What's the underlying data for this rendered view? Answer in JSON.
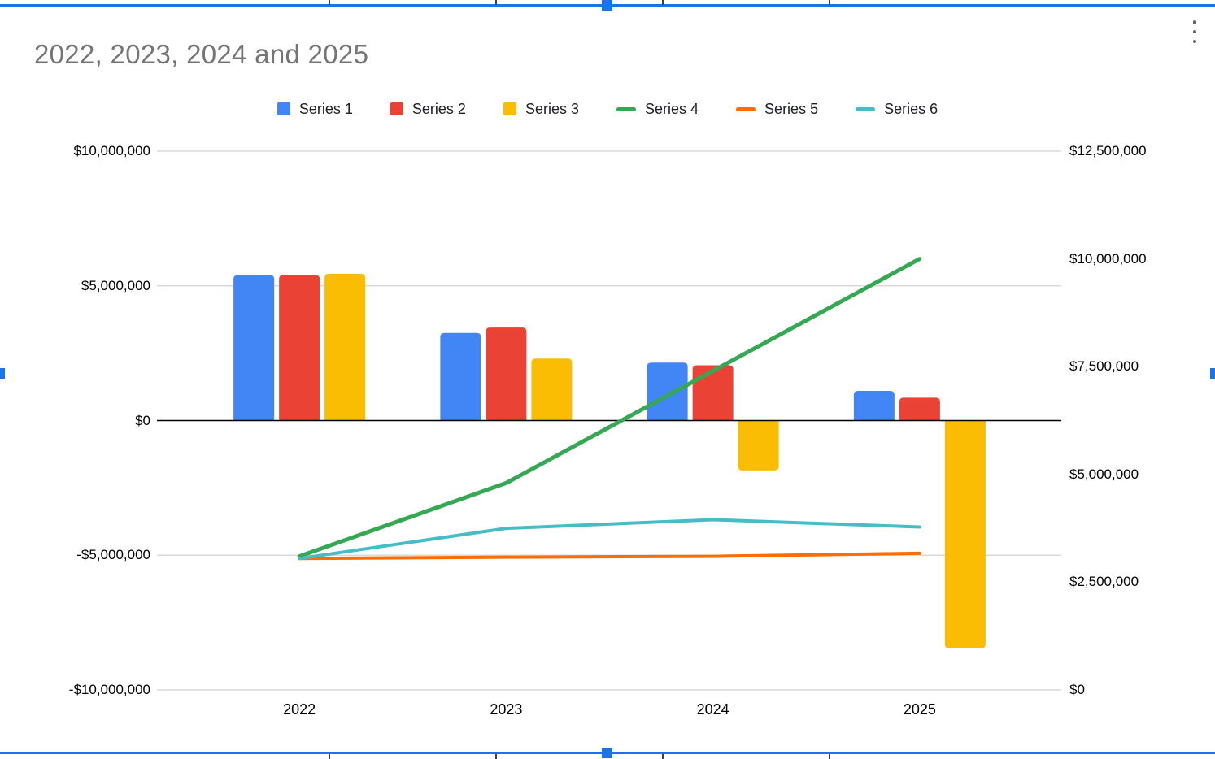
{
  "ui": {
    "selection_color": "#1a73e8",
    "kebab_menu_label": "chart options"
  },
  "chart_data": {
    "type": "combo",
    "title": "2022, 2023, 2024 and 2025",
    "categories": [
      "2022",
      "2023",
      "2024",
      "2025"
    ],
    "bar_series": [
      {
        "name": "Series 1",
        "color": "#4285F4",
        "axis": "left",
        "values": [
          5400000,
          3250000,
          2150000,
          1100000
        ]
      },
      {
        "name": "Series 2",
        "color": "#EA4335",
        "axis": "left",
        "values": [
          5400000,
          3450000,
          2050000,
          850000
        ]
      },
      {
        "name": "Series 3",
        "color": "#FBBC04",
        "axis": "left",
        "values": [
          5450000,
          2300000,
          -1850000,
          -8450000
        ]
      }
    ],
    "line_series": [
      {
        "name": "Series 4",
        "color": "#34A853",
        "axis": "right",
        "stroke_width": 5,
        "values": [
          3100000,
          4800000,
          7400000,
          10000000
        ]
      },
      {
        "name": "Series 5",
        "color": "#FF6D01",
        "axis": "right",
        "stroke_width": 4,
        "values": [
          3050000,
          3080000,
          3100000,
          3170000
        ]
      },
      {
        "name": "Series 6",
        "color": "#46BDC6",
        "axis": "right",
        "stroke_width": 4,
        "values": [
          3050000,
          3750000,
          3950000,
          3780000
        ]
      }
    ],
    "left_axis": {
      "min": -10000000,
      "max": 10000000,
      "tick_values": [
        10000000,
        5000000,
        0,
        -5000000,
        -10000000
      ],
      "ticks": [
        "$10,000,000",
        "$5,000,000",
        "$0",
        "-$5,000,000",
        "-$10,000,000"
      ]
    },
    "right_axis": {
      "min": 0,
      "max": 12500000,
      "tick_values": [
        12500000,
        10000000,
        7500000,
        5000000,
        2500000,
        0
      ],
      "ticks": [
        "$12,500,000",
        "$10,000,000",
        "$7,500,000",
        "$5,000,000",
        "$2,500,000",
        "$0"
      ]
    },
    "grid": true,
    "legend_position": "top"
  }
}
